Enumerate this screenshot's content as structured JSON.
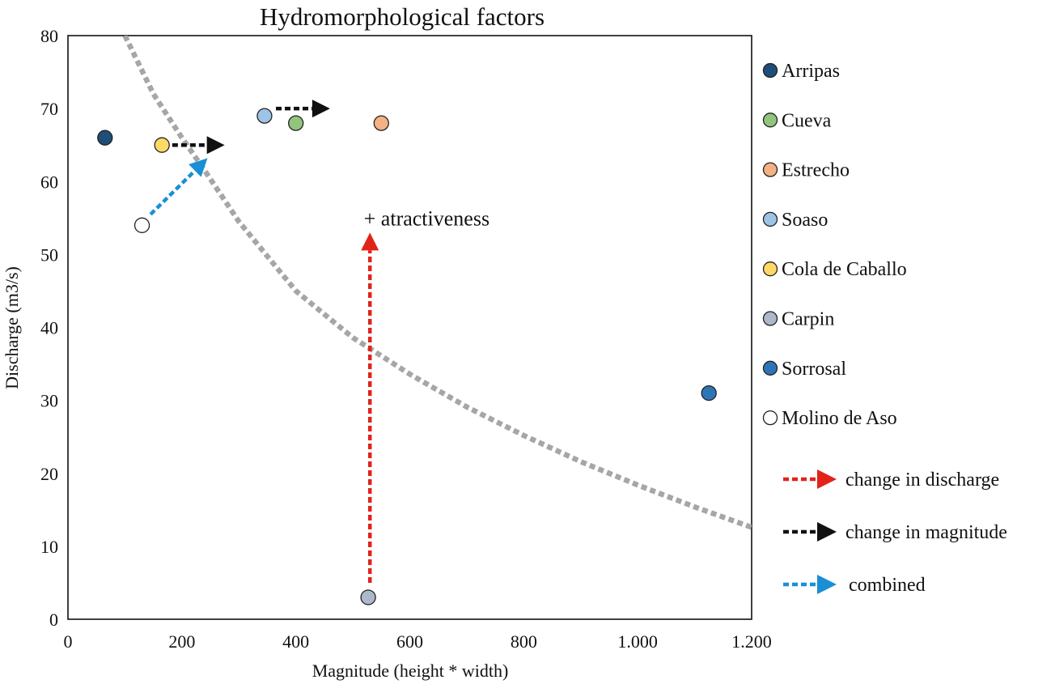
{
  "chart_data": {
    "type": "scatter",
    "title": "Hydromorphological factors",
    "xlabel": "Magnitude (height * width)",
    "ylabel": "Discharge (m3/s)",
    "xlim": [
      0,
      1200
    ],
    "ylim": [
      0,
      80
    ],
    "x_ticks": [
      0,
      200,
      400,
      600,
      800,
      1000,
      1200
    ],
    "x_tick_labels": [
      "0",
      "200",
      "400",
      "600",
      "800",
      "1.000",
      "1.200"
    ],
    "y_ticks": [
      0,
      10,
      20,
      30,
      40,
      50,
      60,
      70,
      80
    ],
    "y_tick_labels": [
      "0",
      "10",
      "20",
      "30",
      "40",
      "50",
      "60",
      "70",
      "80"
    ],
    "grid": false,
    "legend_position": "right",
    "series": [
      {
        "name": "Arripas",
        "x": 65,
        "y": 66,
        "color": "#1f4e79"
      },
      {
        "name": "Cueva",
        "x": 400,
        "y": 68,
        "color": "#92c47d"
      },
      {
        "name": "Estrecho",
        "x": 550,
        "y": 68,
        "color": "#f4b183"
      },
      {
        "name": "Soaso",
        "x": 345,
        "y": 69,
        "color": "#9dc3e6"
      },
      {
        "name": "Cola de Caballo",
        "x": 165,
        "y": 65,
        "color": "#ffd966"
      },
      {
        "name": "Carpin",
        "x": 527,
        "y": 3,
        "color": "#adb9ca"
      },
      {
        "name": "Sorrosal",
        "x": 1125,
        "y": 31,
        "color": "#2e75b6"
      },
      {
        "name": "Molino de Aso",
        "x": 130,
        "y": 54,
        "color": "#ffffff"
      }
    ],
    "trend_curve": {
      "style": "dotted",
      "color": "#a6a6a6",
      "points": [
        [
          100,
          80
        ],
        [
          150,
          72
        ],
        [
          200,
          66
        ],
        [
          240,
          61.5
        ],
        [
          300,
          54.5
        ],
        [
          400,
          45
        ],
        [
          500,
          38.6
        ],
        [
          600,
          33.6
        ],
        [
          700,
          29.1
        ],
        [
          800,
          25.2
        ],
        [
          900,
          21.6
        ],
        [
          1000,
          18.4
        ],
        [
          1100,
          15.4
        ],
        [
          1200,
          12.6
        ]
      ]
    },
    "arrows": [
      {
        "kind": "discharge",
        "from": [
          530,
          5
        ],
        "to": [
          530,
          53
        ],
        "color": "#e2231a"
      },
      {
        "kind": "magnitude",
        "from": [
          183,
          65
        ],
        "to": [
          275,
          65
        ],
        "color": "#111111"
      },
      {
        "kind": "magnitude",
        "from": [
          365,
          70
        ],
        "to": [
          460,
          70
        ],
        "color": "#111111"
      },
      {
        "kind": "combined",
        "from": [
          145,
          55.5
        ],
        "to": [
          245,
          63.2
        ],
        "color": "#1a8fd6"
      }
    ],
    "annotation": {
      "text": "+ atractiveness",
      "x": 740,
      "y": 55
    },
    "arrow_legend": [
      {
        "label": "change in discharge",
        "color": "#e2231a"
      },
      {
        "label": "change in magnitude",
        "color": "#111111"
      },
      {
        "label": "combined",
        "color": "#1a8fd6"
      }
    ]
  }
}
